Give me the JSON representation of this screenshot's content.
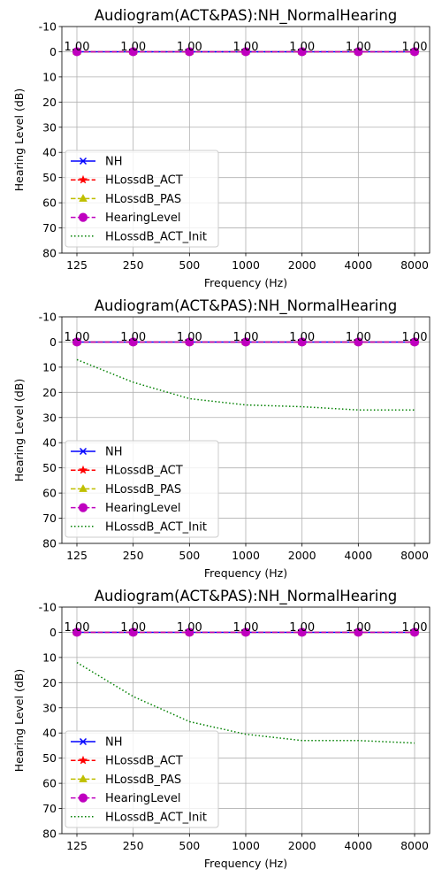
{
  "chart_data": [
    {
      "type": "line",
      "title": "Audiogram(ACT&PAS):NH_NormalHearing",
      "xlabel": "Frequency (Hz)",
      "ylabel": "Hearing Level (dB)",
      "categories": [
        "125",
        "250",
        "500",
        "1000",
        "2000",
        "4000",
        "8000"
      ],
      "ylim": [
        80,
        -10
      ],
      "yticks": [
        "-10",
        "0",
        "10",
        "20",
        "30",
        "40",
        "50",
        "60",
        "70",
        "80"
      ],
      "grid": true,
      "legend_position": "lower-left",
      "data_labels": [
        "1.00",
        "1.00",
        "1.00",
        "1.00",
        "1.00",
        "1.00",
        "1.00"
      ],
      "series": [
        {
          "name": "NH",
          "values": [
            0,
            0,
            0,
            0,
            0,
            0,
            0
          ],
          "color": "#0000ff",
          "style": "solid",
          "marker": "x"
        },
        {
          "name": "HLossdB_ACT",
          "values": [
            0,
            0,
            0,
            0,
            0,
            0,
            0
          ],
          "color": "#ff0000",
          "style": "dashed",
          "marker": "star"
        },
        {
          "name": "HLossdB_PAS",
          "values": [
            0,
            0,
            0,
            0,
            0,
            0,
            0
          ],
          "color": "#bfbf00",
          "style": "dashed",
          "marker": "triangle"
        },
        {
          "name": "HearingLevel",
          "values": [
            0,
            0,
            0,
            0,
            0,
            0,
            0
          ],
          "color": "#bf00bf",
          "style": "dashed",
          "marker": "circle"
        },
        {
          "name": "HLossdB_ACT_Init",
          "values": [
            0,
            0,
            0,
            0,
            0,
            0,
            0
          ],
          "color": "#008000",
          "style": "dotted",
          "marker": "none"
        }
      ]
    },
    {
      "type": "line",
      "title": "Audiogram(ACT&PAS):NH_NormalHearing",
      "xlabel": "Frequency (Hz)",
      "ylabel": "Hearing Level (dB)",
      "categories": [
        "125",
        "250",
        "500",
        "1000",
        "2000",
        "4000",
        "8000"
      ],
      "ylim": [
        80,
        -10
      ],
      "yticks": [
        "-10",
        "0",
        "10",
        "20",
        "30",
        "40",
        "50",
        "60",
        "70",
        "80"
      ],
      "grid": true,
      "legend_position": "lower-left",
      "data_labels": [
        "1.00",
        "1.00",
        "1.00",
        "1.00",
        "1.00",
        "1.00",
        "1.00"
      ],
      "series": [
        {
          "name": "NH",
          "values": [
            0,
            0,
            0,
            0,
            0,
            0,
            0
          ],
          "color": "#0000ff",
          "style": "solid",
          "marker": "x"
        },
        {
          "name": "HLossdB_ACT",
          "values": [
            0,
            0,
            0,
            0,
            0,
            0,
            0
          ],
          "color": "#ff0000",
          "style": "dashed",
          "marker": "star"
        },
        {
          "name": "HLossdB_PAS",
          "values": [
            0,
            0,
            0,
            0,
            0,
            0,
            0
          ],
          "color": "#bfbf00",
          "style": "dashed",
          "marker": "triangle"
        },
        {
          "name": "HearingLevel",
          "values": [
            0,
            0,
            0,
            0,
            0,
            0,
            0
          ],
          "color": "#bf00bf",
          "style": "dashed",
          "marker": "circle"
        },
        {
          "name": "HLossdB_ACT_Init",
          "values": [
            7,
            16,
            22.5,
            25,
            25.7,
            27,
            27
          ],
          "color": "#008000",
          "style": "dotted",
          "marker": "none"
        }
      ]
    },
    {
      "type": "line",
      "title": "Audiogram(ACT&PAS):NH_NormalHearing",
      "xlabel": "Frequency (Hz)",
      "ylabel": "Hearing Level (dB)",
      "categories": [
        "125",
        "250",
        "500",
        "1000",
        "2000",
        "4000",
        "8000"
      ],
      "ylim": [
        80,
        -10
      ],
      "yticks": [
        "-10",
        "0",
        "10",
        "20",
        "30",
        "40",
        "50",
        "60",
        "70",
        "80"
      ],
      "grid": true,
      "legend_position": "lower-left",
      "data_labels": [
        "1.00",
        "1.00",
        "1.00",
        "1.00",
        "1.00",
        "1.00",
        "1.00"
      ],
      "series": [
        {
          "name": "NH",
          "values": [
            0,
            0,
            0,
            0,
            0,
            0,
            0
          ],
          "color": "#0000ff",
          "style": "solid",
          "marker": "x"
        },
        {
          "name": "HLossdB_ACT",
          "values": [
            0,
            0,
            0,
            0,
            0,
            0,
            0
          ],
          "color": "#ff0000",
          "style": "dashed",
          "marker": "star"
        },
        {
          "name": "HLossdB_PAS",
          "values": [
            0,
            0,
            0,
            0,
            0,
            0,
            0
          ],
          "color": "#bfbf00",
          "style": "dashed",
          "marker": "triangle"
        },
        {
          "name": "HearingLevel",
          "values": [
            0,
            0,
            0,
            0,
            0,
            0,
            0
          ],
          "color": "#bf00bf",
          "style": "dashed",
          "marker": "circle"
        },
        {
          "name": "HLossdB_ACT_Init",
          "values": [
            12,
            25.5,
            35.5,
            40.5,
            43,
            43,
            44
          ],
          "color": "#008000",
          "style": "dotted",
          "marker": "none"
        }
      ]
    }
  ]
}
